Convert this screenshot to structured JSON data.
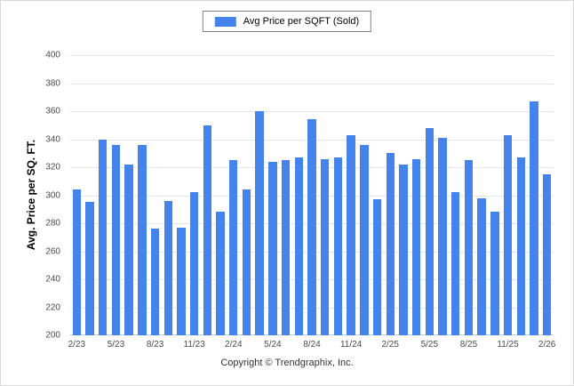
{
  "legend": {
    "label": "Avg Price per SQFT (Sold)",
    "color": "#4583ec"
  },
  "y_axis_title": "Avg. Price per SQ. FT.",
  "footer": {
    "copyright": "Copyright © Trendgraphix, Inc."
  },
  "chart_data": {
    "type": "bar",
    "title": "Avg Price per SQFT (Sold)",
    "xlabel": "",
    "ylabel": "Avg. Price per SQ. FT.",
    "ylim": [
      200,
      400
    ],
    "y_ticks": [
      200,
      220,
      240,
      260,
      280,
      300,
      320,
      340,
      360,
      380,
      400
    ],
    "x_tick_labels": [
      "2/23",
      "5/23",
      "8/23",
      "11/23",
      "2/24",
      "5/24",
      "8/24",
      "11/24",
      "2/25",
      "5/25",
      "8/25",
      "11/25",
      "2/26"
    ],
    "x_tick_every": 3,
    "bar_color": "#4583ec",
    "grid": true,
    "legend_position": "top",
    "values": [
      304,
      295,
      340,
      336,
      322,
      336,
      276,
      296,
      277,
      302,
      350,
      288,
      325,
      304,
      360,
      324,
      325,
      327,
      354,
      326,
      327,
      343,
      336,
      297,
      330,
      322,
      326,
      348,
      341,
      302,
      325,
      298,
      288,
      343,
      327,
      367,
      315
    ]
  }
}
